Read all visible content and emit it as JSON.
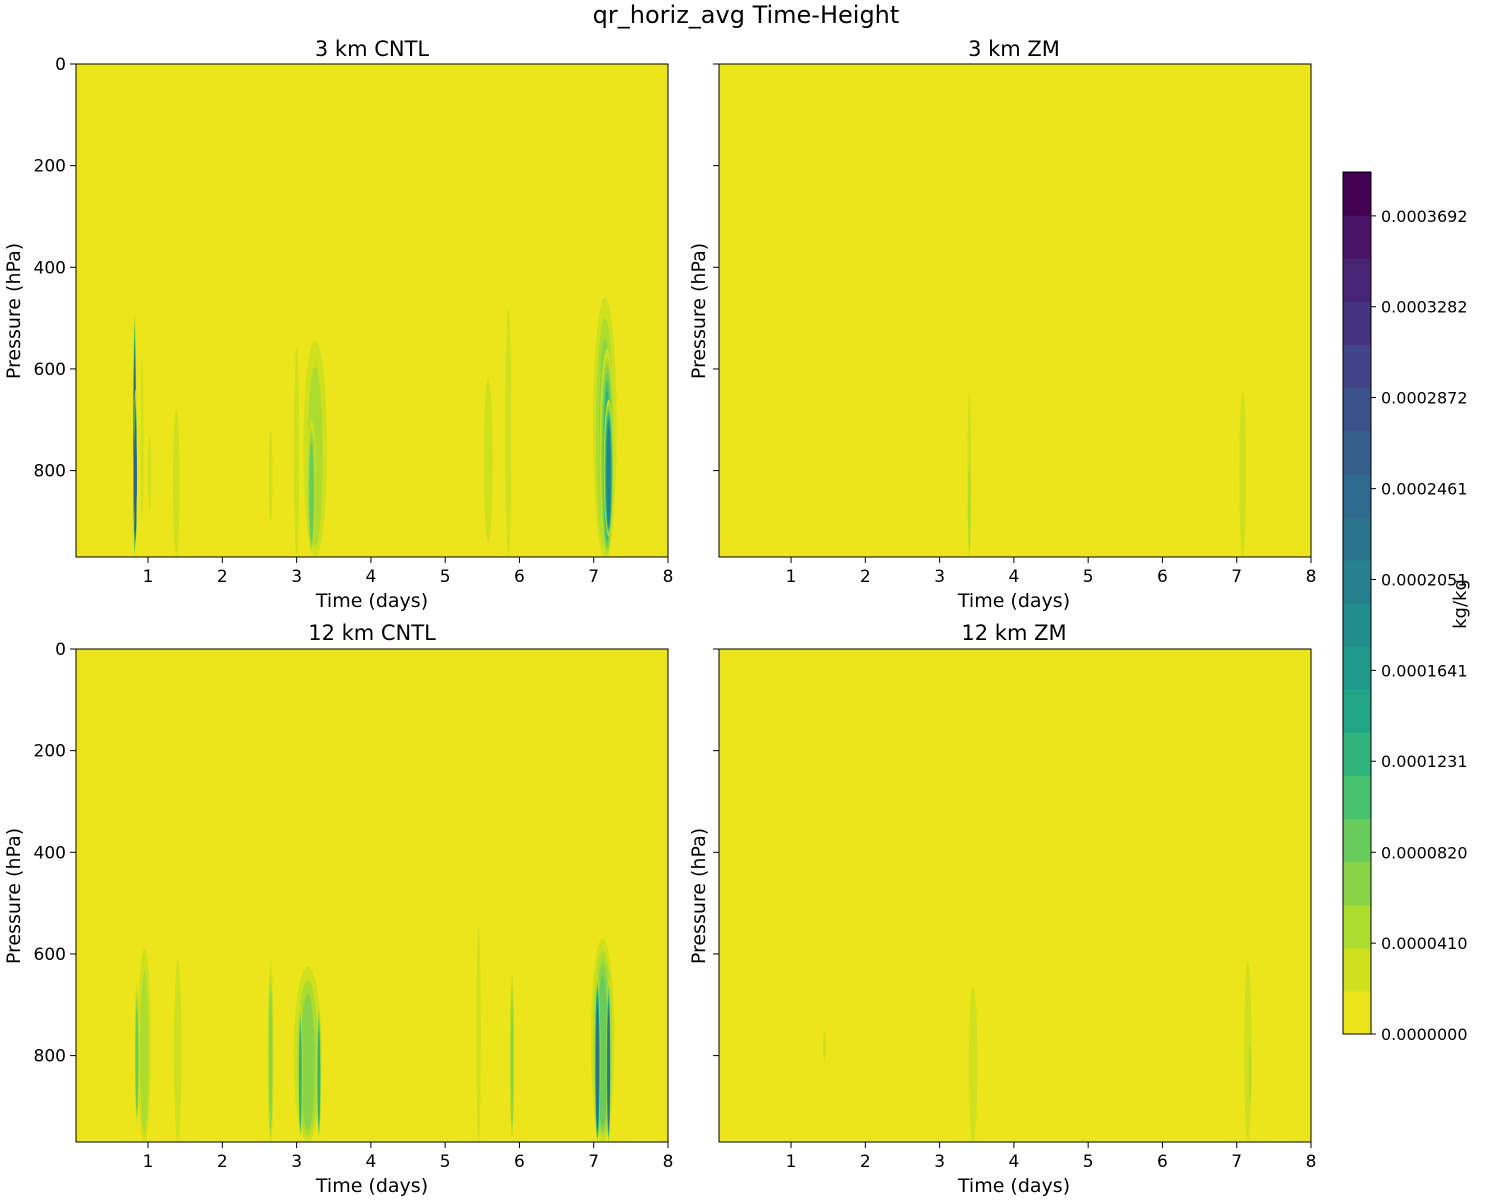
{
  "chart_data": {
    "type": "heatmap",
    "title": "qr_horiz_avg Time-Height",
    "xlabel": "Time (days)",
    "ylabel": "Pressure (hPa)",
    "xlim": [
      0.03,
      8
    ],
    "ylim": [
      970,
      0
    ],
    "xticks": [
      1,
      2,
      3,
      4,
      5,
      6,
      7,
      8
    ],
    "yticks": [
      0,
      200,
      400,
      600,
      800
    ],
    "colorbar": {
      "label": "kg/kg",
      "min": 0.0,
      "max": 0.000389,
      "levels": 20,
      "tick_values": [
        0.0,
        4.1e-05,
        8.2e-05,
        0.0001231,
        0.0001641,
        0.0002051,
        0.0002461,
        0.0002872,
        0.0003282,
        0.0003692
      ],
      "tick_labels": [
        "0.0000000",
        "0.0000410",
        "0.0000820",
        "0.0001231",
        "0.0001641",
        "0.0002051",
        "0.0002461",
        "0.0002872",
        "0.0003282",
        "0.0003692"
      ],
      "colors": [
        "#ede51b",
        "#cfe11c",
        "#addc30",
        "#8ad547",
        "#67cc5c",
        "#48c16e",
        "#2fb47c",
        "#21a685",
        "#1f9a8a",
        "#228d8d",
        "#26818e",
        "#2a748e",
        "#2f6b8e",
        "#355e8d",
        "#3b518b",
        "#414487",
        "#46337f",
        "#482475",
        "#481467",
        "#440154"
      ]
    },
    "panels": [
      {
        "title": "3 km CNTL",
        "show_ytick_labels": true,
        "features": [
          {
            "t": 0.82,
            "w": 0.045,
            "p_top": 490,
            "p_bot": 970,
            "peak_level": 11
          },
          {
            "t": 0.83,
            "w": 0.02,
            "p_top": 640,
            "p_bot": 950,
            "peak_level": 13
          },
          {
            "t": 0.92,
            "w": 0.02,
            "p_top": 580,
            "p_bot": 900,
            "peak_level": 1
          },
          {
            "t": 1.02,
            "w": 0.02,
            "p_top": 730,
            "p_bot": 880,
            "peak_level": 1
          },
          {
            "t": 1.38,
            "w": 0.09,
            "p_top": 680,
            "p_bot": 970,
            "peak_level": 1
          },
          {
            "t": 2.65,
            "w": 0.05,
            "p_top": 720,
            "p_bot": 900,
            "peak_level": 1
          },
          {
            "t": 3.0,
            "w": 0.07,
            "p_top": 560,
            "p_bot": 970,
            "peak_level": 1
          },
          {
            "t": 3.25,
            "w": 0.32,
            "p_top": 545,
            "p_bot": 970,
            "peak_level": 2
          },
          {
            "t": 3.2,
            "w": 0.12,
            "p_top": 700,
            "p_bot": 960,
            "peak_level": 4
          },
          {
            "t": 5.58,
            "w": 0.12,
            "p_top": 620,
            "p_bot": 940,
            "peak_level": 1
          },
          {
            "t": 5.85,
            "w": 0.08,
            "p_top": 480,
            "p_bot": 970,
            "peak_level": 1
          },
          {
            "t": 7.15,
            "w": 0.32,
            "p_top": 460,
            "p_bot": 970,
            "peak_level": 3
          },
          {
            "t": 7.18,
            "w": 0.2,
            "p_top": 560,
            "p_bot": 970,
            "peak_level": 6
          },
          {
            "t": 7.2,
            "w": 0.13,
            "p_top": 660,
            "p_bot": 930,
            "peak_level": 10
          }
        ]
      },
      {
        "title": "3 km ZM",
        "show_ytick_labels": false,
        "features": [
          {
            "t": 3.4,
            "w": 0.05,
            "p_top": 645,
            "p_bot": 970,
            "peak_level": 1
          },
          {
            "t": 3.4,
            "w": 0.025,
            "p_top": 760,
            "p_bot": 970,
            "peak_level": 2
          },
          {
            "t": 7.08,
            "w": 0.09,
            "p_top": 645,
            "p_bot": 970,
            "peak_level": 1
          }
        ]
      },
      {
        "title": "12 km CNTL",
        "show_ytick_labels": true,
        "features": [
          {
            "t": 0.95,
            "w": 0.18,
            "p_top": 590,
            "p_bot": 970,
            "peak_level": 2
          },
          {
            "t": 0.85,
            "w": 0.06,
            "p_top": 660,
            "p_bot": 930,
            "peak_level": 4
          },
          {
            "t": 1.4,
            "w": 0.1,
            "p_top": 610,
            "p_bot": 970,
            "peak_level": 1
          },
          {
            "t": 2.65,
            "w": 0.08,
            "p_top": 620,
            "p_bot": 970,
            "peak_level": 3
          },
          {
            "t": 3.15,
            "w": 0.38,
            "p_top": 625,
            "p_bot": 970,
            "peak_level": 3
          },
          {
            "t": 3.05,
            "w": 0.06,
            "p_top": 700,
            "p_bot": 960,
            "peak_level": 6
          },
          {
            "t": 3.3,
            "w": 0.06,
            "p_top": 700,
            "p_bot": 960,
            "peak_level": 6
          },
          {
            "t": 5.45,
            "w": 0.06,
            "p_top": 545,
            "p_bot": 970,
            "peak_level": 1
          },
          {
            "t": 5.9,
            "w": 0.06,
            "p_top": 640,
            "p_bot": 960,
            "peak_level": 3
          },
          {
            "t": 7.12,
            "w": 0.32,
            "p_top": 570,
            "p_bot": 970,
            "peak_level": 4
          },
          {
            "t": 7.05,
            "w": 0.08,
            "p_top": 640,
            "p_bot": 970,
            "peak_level": 12
          },
          {
            "t": 7.2,
            "w": 0.06,
            "p_top": 650,
            "p_bot": 970,
            "peak_level": 11
          }
        ]
      },
      {
        "title": "12 km ZM",
        "show_ytick_labels": false,
        "features": [
          {
            "t": 1.45,
            "w": 0.02,
            "p_top": 750,
            "p_bot": 810,
            "peak_level": 1
          },
          {
            "t": 3.45,
            "w": 0.12,
            "p_top": 665,
            "p_bot": 970,
            "peak_level": 1
          },
          {
            "t": 7.15,
            "w": 0.1,
            "p_top": 615,
            "p_bot": 970,
            "peak_level": 1
          },
          {
            "t": 7.18,
            "w": 0.04,
            "p_top": 760,
            "p_bot": 900,
            "peak_level": 2
          }
        ]
      }
    ]
  }
}
